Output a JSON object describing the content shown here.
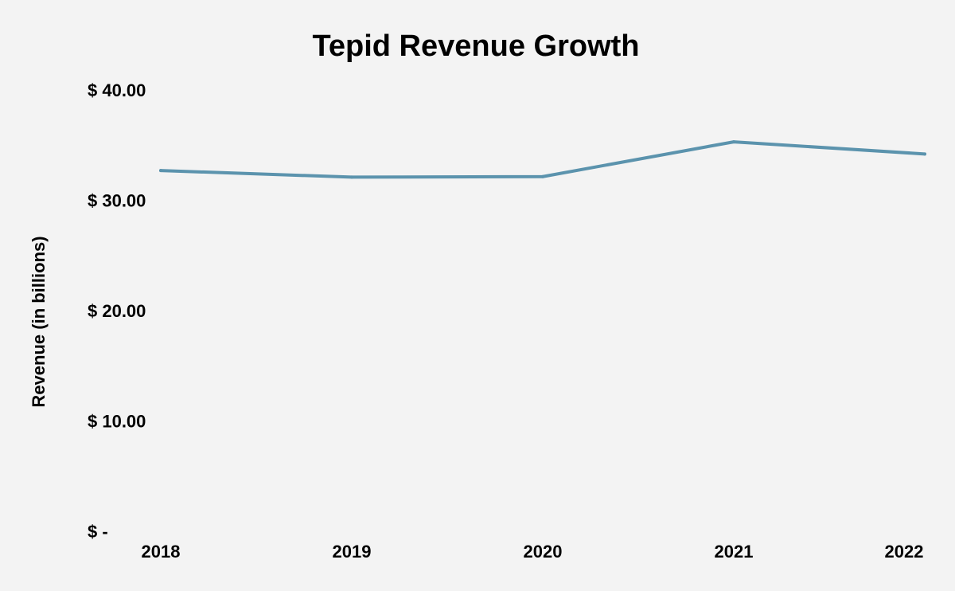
{
  "chart_data": {
    "type": "line",
    "title": "Tepid Revenue Growth",
    "xlabel": "",
    "ylabel": "Revenue (in billions)",
    "categories": [
      "2018",
      "2019",
      "2020",
      "2021",
      "2022"
    ],
    "series": [
      {
        "values": [
          32.7,
          32.1,
          32.15,
          35.3,
          34.2
        ]
      }
    ],
    "ylim": [
      0,
      40
    ],
    "yticks": [
      0,
      10,
      20,
      30,
      40
    ],
    "ytick_labels": [
      "$ -",
      "$ 10.00",
      "$ 20.00",
      "$ 30.00",
      "$ 40.00"
    ],
    "grid": false,
    "legend": "none",
    "line_color": "#5b93ad",
    "background_color": "#f3f3f3"
  }
}
